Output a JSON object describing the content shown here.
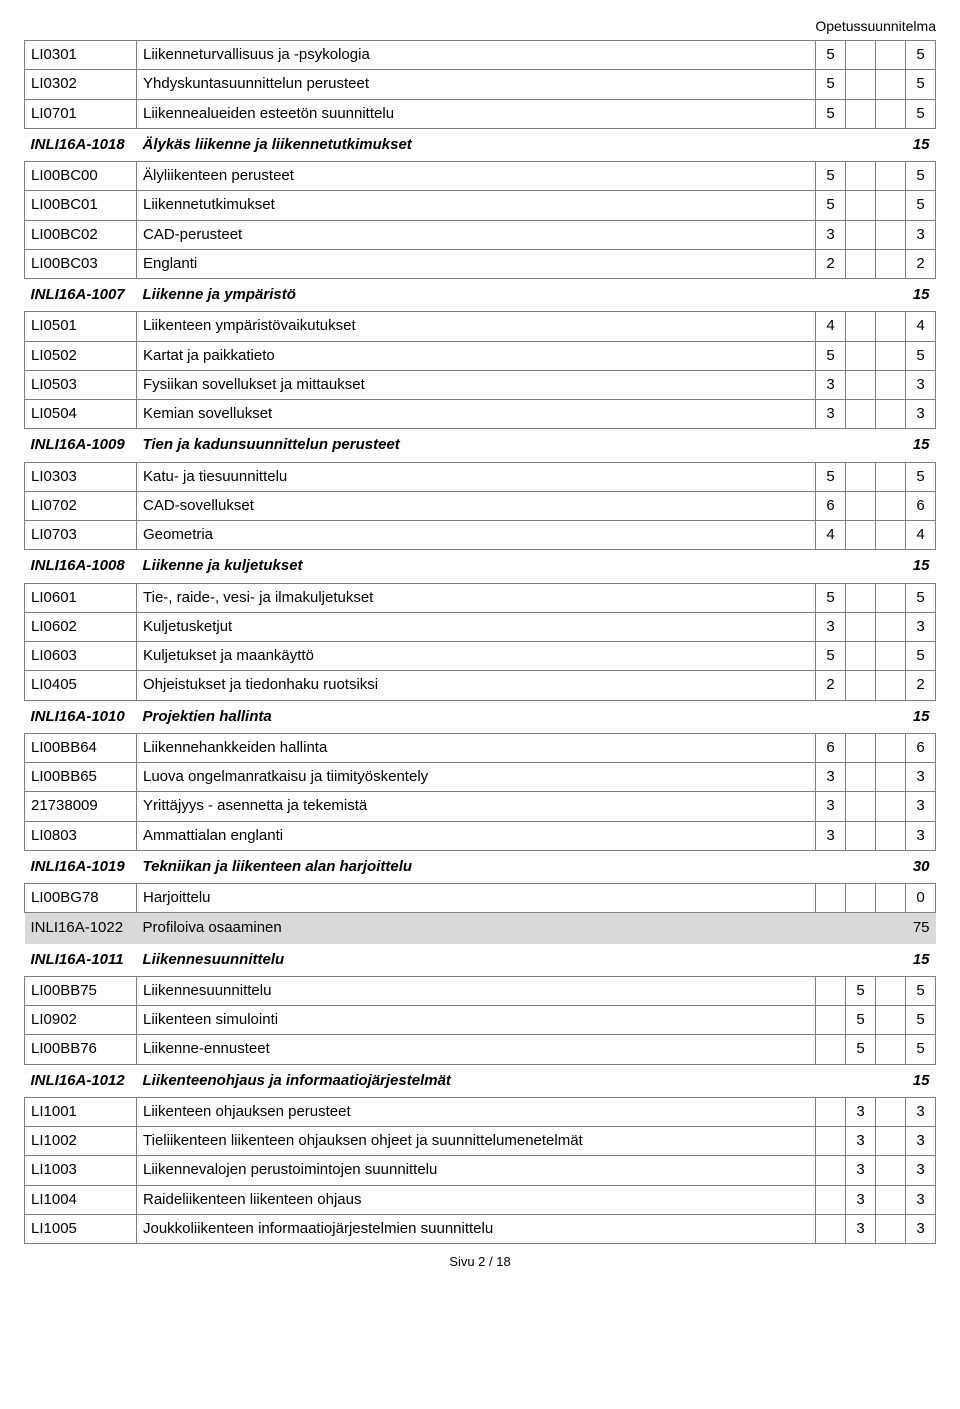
{
  "header_text": "Opetussuunnitelma",
  "footer_text": "Sivu 2 / 18",
  "colors": {
    "border": "#7f7f7f",
    "section_bg": "#d9d9d9",
    "text": "#000000",
    "background": "#ffffff"
  },
  "rows": [
    {
      "type": "course",
      "code": "LI0301",
      "name": "Liikenneturvallisuus ja -psykologia",
      "c": [
        "5",
        "",
        "",
        "5"
      ]
    },
    {
      "type": "course",
      "code": "LI0302",
      "name": "Yhdyskuntasuunnittelun perusteet",
      "c": [
        "5",
        "",
        "",
        "5"
      ]
    },
    {
      "type": "course",
      "code": "LI0701",
      "name": "Liikennealueiden esteetön suunnittelu",
      "c": [
        "5",
        "",
        "",
        "5"
      ]
    },
    {
      "type": "module",
      "code": "INLI16A-1018",
      "name": "Älykäs liikenne ja liikennetutkimukset",
      "total": "15"
    },
    {
      "type": "course",
      "code": "LI00BC00",
      "name": "Älyliikenteen perusteet",
      "c": [
        "5",
        "",
        "",
        "5"
      ]
    },
    {
      "type": "course",
      "code": "LI00BC01",
      "name": "Liikennetutkimukset",
      "c": [
        "5",
        "",
        "",
        "5"
      ]
    },
    {
      "type": "course",
      "code": "LI00BC02",
      "name": "CAD-perusteet",
      "c": [
        "3",
        "",
        "",
        "3"
      ]
    },
    {
      "type": "course",
      "code": "LI00BC03",
      "name": "Englanti",
      "c": [
        "2",
        "",
        "",
        "2"
      ]
    },
    {
      "type": "module",
      "code": "INLI16A-1007",
      "name": "Liikenne ja ympäristö",
      "total": "15"
    },
    {
      "type": "course",
      "code": "LI0501",
      "name": "Liikenteen ympäristövaikutukset",
      "c": [
        "4",
        "",
        "",
        "4"
      ]
    },
    {
      "type": "course",
      "code": "LI0502",
      "name": "Kartat ja paikkatieto",
      "c": [
        "5",
        "",
        "",
        "5"
      ]
    },
    {
      "type": "course",
      "code": "LI0503",
      "name": "Fysiikan sovellukset ja mittaukset",
      "c": [
        "3",
        "",
        "",
        "3"
      ]
    },
    {
      "type": "course",
      "code": "LI0504",
      "name": "Kemian sovellukset",
      "c": [
        "3",
        "",
        "",
        "3"
      ]
    },
    {
      "type": "module",
      "code": "INLI16A-1009",
      "name": "Tien ja kadunsuunnittelun perusteet",
      "total": "15"
    },
    {
      "type": "course",
      "code": "LI0303",
      "name": "Katu- ja tiesuunnittelu",
      "c": [
        "5",
        "",
        "",
        "5"
      ]
    },
    {
      "type": "course",
      "code": "LI0702",
      "name": "CAD-sovellukset",
      "c": [
        "6",
        "",
        "",
        "6"
      ]
    },
    {
      "type": "course",
      "code": "LI0703",
      "name": "Geometria",
      "c": [
        "4",
        "",
        "",
        "4"
      ]
    },
    {
      "type": "module",
      "code": "INLI16A-1008",
      "name": "Liikenne ja kuljetukset",
      "total": "15"
    },
    {
      "type": "course",
      "code": "LI0601",
      "name": "Tie-, raide-, vesi- ja ilmakuljetukset",
      "c": [
        "5",
        "",
        "",
        "5"
      ]
    },
    {
      "type": "course",
      "code": "LI0602",
      "name": "Kuljetusketjut",
      "c": [
        "3",
        "",
        "",
        "3"
      ]
    },
    {
      "type": "course",
      "code": "LI0603",
      "name": "Kuljetukset ja maankäyttö",
      "c": [
        "5",
        "",
        "",
        "5"
      ]
    },
    {
      "type": "course",
      "code": "LI0405",
      "name": "Ohjeistukset ja tiedonhaku ruotsiksi",
      "c": [
        "2",
        "",
        "",
        "2"
      ]
    },
    {
      "type": "module",
      "code": "INLI16A-1010",
      "name": "Projektien hallinta",
      "total": "15"
    },
    {
      "type": "course",
      "code": "LI00BB64",
      "name": "Liikennehankkeiden hallinta",
      "c": [
        "6",
        "",
        "",
        "6"
      ]
    },
    {
      "type": "course",
      "code": "LI00BB65",
      "name": "Luova ongelmanratkaisu ja tiimityöskentely",
      "c": [
        "3",
        "",
        "",
        "3"
      ]
    },
    {
      "type": "course",
      "code": "21738009",
      "name": "Yrittäjyys - asennetta ja tekemistä",
      "c": [
        "3",
        "",
        "",
        "3"
      ]
    },
    {
      "type": "course",
      "code": "LI0803",
      "name": "Ammattialan englanti",
      "c": [
        "3",
        "",
        "",
        "3"
      ]
    },
    {
      "type": "module",
      "code": "INLI16A-1019",
      "name": "Tekniikan ja liikenteen alan harjoittelu",
      "total": "30"
    },
    {
      "type": "course",
      "code": "LI00BG78",
      "name": "Harjoittelu",
      "c": [
        "",
        "",
        "",
        "0"
      ]
    },
    {
      "type": "section",
      "code": "INLI16A-1022",
      "name": "Profiloiva osaaminen",
      "total": "75"
    },
    {
      "type": "module",
      "code": "INLI16A-1011",
      "name": "Liikennesuunnittelu",
      "total": "15"
    },
    {
      "type": "course",
      "code": "LI00BB75",
      "name": "Liikennesuunnittelu",
      "c": [
        "",
        "5",
        "",
        "5"
      ]
    },
    {
      "type": "course",
      "code": "LI0902",
      "name": "Liikenteen simulointi",
      "c": [
        "",
        "5",
        "",
        "5"
      ]
    },
    {
      "type": "course",
      "code": "LI00BB76",
      "name": "Liikenne-ennusteet",
      "c": [
        "",
        "5",
        "",
        "5"
      ]
    },
    {
      "type": "module",
      "code": "INLI16A-1012",
      "name": "Liikenteenohjaus ja informaatiojärjestelmät",
      "total": "15"
    },
    {
      "type": "course",
      "code": "LI1001",
      "name": "Liikenteen ohjauksen perusteet",
      "c": [
        "",
        "3",
        "",
        "3"
      ]
    },
    {
      "type": "course",
      "code": "LI1002",
      "name": "Tieliikenteen liikenteen ohjauksen ohjeet ja suunnittelumenetelmät",
      "c": [
        "",
        "3",
        "",
        "3"
      ]
    },
    {
      "type": "course",
      "code": "LI1003",
      "name": "Liikennevalojen perustoimintojen suunnittelu",
      "c": [
        "",
        "3",
        "",
        "3"
      ]
    },
    {
      "type": "course",
      "code": "LI1004",
      "name": "Raideliikenteen liikenteen ohjaus",
      "c": [
        "",
        "3",
        "",
        "3"
      ]
    },
    {
      "type": "course",
      "code": "LI1005",
      "name": "Joukkoliikenteen informaatiojärjestelmien suunnittelu",
      "c": [
        "",
        "3",
        "",
        "3"
      ]
    }
  ]
}
